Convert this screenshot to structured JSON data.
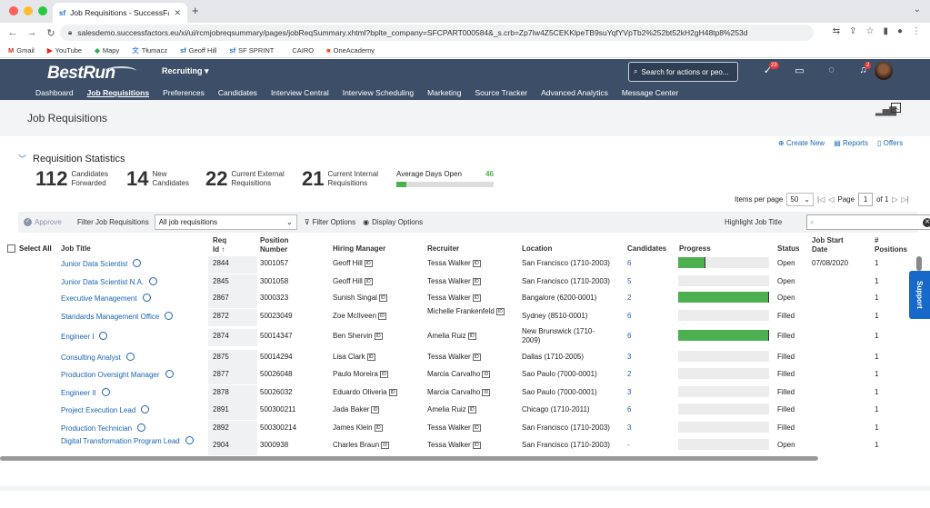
{
  "browser": {
    "tab_title": "Job Requisitions - SuccessFac",
    "tab_icon": "sf",
    "url": "salesdemo.successfactors.eu/xi/ui/rcmjobreqsummary/pages/jobReqSummary.xhtml?bplte_company=SFCPART000584&_s.crb=Zp7Iw4Z5CEKKlpeTB9suYqfYVpTb2%252bt52kH2gH48tp8%253d",
    "bookmarks": [
      {
        "icon": "M",
        "label": "Gmail"
      },
      {
        "icon": "▶",
        "label": "YouTube"
      },
      {
        "icon": "◆",
        "label": "Mapy"
      },
      {
        "icon": "文",
        "label": "Tłumacz"
      },
      {
        "icon": "sf",
        "label": "Geoff Hill"
      },
      {
        "icon": "sf",
        "label": "SF SPRINT"
      },
      {
        "icon": "",
        "label": "CAIRO"
      },
      {
        "icon": "■",
        "label": "OneAcademy"
      }
    ]
  },
  "header": {
    "logo_a": "Best",
    "logo_b": "Run",
    "module": "Recruiting ▾",
    "search_placeholder": "Search for actions or peo...",
    "badge_todo": "23",
    "badge_notif": "2",
    "nav": [
      "Dashboard",
      "Job Requisitions",
      "Preferences",
      "Candidates",
      "Interview Central",
      "Interview Scheduling",
      "Marketing",
      "Source Tracker",
      "Advanced Analytics",
      "Message Center"
    ]
  },
  "page": {
    "title": "Job Requisitions",
    "section_title": "Requisition Statistics",
    "actions": {
      "create": "Create New",
      "reports": "Reports",
      "offers": "Offers"
    },
    "stats": [
      {
        "num": "112",
        "l1": "Candidates",
        "l2": "Forwarded"
      },
      {
        "num": "14",
        "l1": "New",
        "l2": "Candidates"
      },
      {
        "num": "22",
        "l1": "Current External",
        "l2": "Requisitions"
      },
      {
        "num": "21",
        "l1": "Current Internal",
        "l2": "Requisitions"
      }
    ],
    "avg_label": "Average Days Open",
    "avg_value": "46",
    "avg_fraction": 0.1,
    "items_per_page_label": "Items per page",
    "items_per_page": "50",
    "page_label": "Page",
    "page_num": "1",
    "page_of": "of 1",
    "approve": "Approve",
    "filter_label": "Filter Job Requisitions",
    "filter_value": "All job requisitions",
    "filter_options": "Filter Options",
    "display_options": "Display Options",
    "highlight_label": "Highlight Job Title",
    "support": "Support"
  },
  "table": {
    "select_all": "Select All",
    "headers": {
      "job_title": "Job Title",
      "req_id_1": "Req",
      "req_id_2": "Id ↑",
      "position_1": "Position",
      "position_2": "Number",
      "manager": "Hiring Manager",
      "recruiter": "Recruiter",
      "location": "Location",
      "candidates": "Candidates",
      "progress": "Progress",
      "status": "Status",
      "start_1": "Job Start",
      "start_2": "Date",
      "positions_1": "#",
      "positions_2": "Positions"
    },
    "rows": [
      {
        "title": "Junior Data Scientist",
        "req": "2844",
        "pos": "3001057",
        "mgr": "Geoff Hill",
        "rec": "Tessa Walker",
        "loc": "San Francisco (1710-2003)",
        "cand": "6",
        "progress": 0.3,
        "status": "Open",
        "start": "07/08/2020",
        "n": "1"
      },
      {
        "title": "Junior Data Scientist N.A.",
        "req": "2845",
        "pos": "3001058",
        "mgr": "Geoff Hill",
        "rec": "Tessa Walker",
        "loc": "San Francisco (1710-2003)",
        "cand": "5",
        "progress": 0,
        "status": "Open",
        "start": "",
        "n": "1"
      },
      {
        "title": "Executive Management",
        "req": "2867",
        "pos": "3000323",
        "mgr": "Sunish Singal",
        "rec": "Tessa Walker",
        "loc": "Bangalore (6200-0001)",
        "cand": "2",
        "progress": 1.0,
        "status": "Open",
        "start": "",
        "n": "1"
      },
      {
        "title": "Standards Management Office",
        "req": "2872",
        "pos": "50023049",
        "mgr": "Zoe McIlveen",
        "rec": "Michelle Frankenfeld",
        "loc": "Sydney (8510-0001)",
        "cand": "6",
        "progress": 0,
        "status": "Filled",
        "start": "",
        "n": "1"
      },
      {
        "title": "Engineer I",
        "req": "2874",
        "pos": "50014347",
        "mgr": "Ben Shervin",
        "rec": "Amelia Ruiz",
        "loc": "New Brunswick (1710-2009)",
        "cand": "6",
        "progress": 1.0,
        "status": "Filled",
        "start": "",
        "n": "1"
      },
      {
        "title": "Consulting Analyst",
        "req": "2875",
        "pos": "50014294",
        "mgr": "Lisa Clark",
        "rec": "Tessa Walker",
        "loc": "Dallas (1710-2005)",
        "cand": "3",
        "progress": 0,
        "status": "Filled",
        "start": "",
        "n": "1"
      },
      {
        "title": "Production Oversight Manager",
        "req": "2877",
        "pos": "50026048",
        "mgr": "Paulo Moreira",
        "rec": "Marcia Carvalho",
        "loc": "Sao Paulo (7000-0001)",
        "cand": "2",
        "progress": 0,
        "status": "Filled",
        "start": "",
        "n": "1"
      },
      {
        "title": "Engineer II",
        "req": "2878",
        "pos": "50026032",
        "mgr": "Eduardo Oliveria",
        "rec": "Marcia Carvalho",
        "loc": "Sao Paulo (7000-0001)",
        "cand": "3",
        "progress": 0,
        "status": "Filled",
        "start": "",
        "n": "1"
      },
      {
        "title": "Project Execution Lead",
        "req": "2891",
        "pos": "500300211",
        "mgr": "Jada Baker",
        "rec": "Amelia Ruiz",
        "loc": "Chicago (1710-2011)",
        "cand": "6",
        "progress": 0,
        "status": "Filled",
        "start": "",
        "n": "1"
      },
      {
        "title": "Production Technician",
        "req": "2892",
        "pos": "500300214",
        "mgr": "James Klein",
        "rec": "Tessa Walker",
        "loc": "San Francisco (1710-2003)",
        "cand": "3",
        "progress": 0,
        "status": "Filled",
        "start": "",
        "n": "1"
      },
      {
        "title": "Digital Transformation Program Lead",
        "req": "2904",
        "pos": "3000938",
        "mgr": "Charles Braun",
        "rec": "Tessa Walker",
        "loc": "San Francisco (1710-2003)",
        "cand": "-",
        "progress": 0,
        "status": "Open",
        "start": "",
        "n": "1"
      }
    ]
  }
}
